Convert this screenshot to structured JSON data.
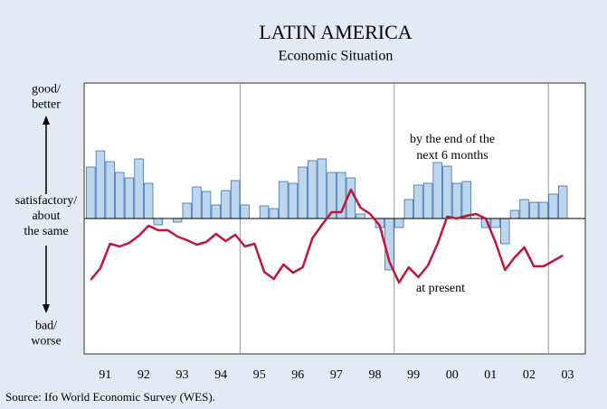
{
  "chart_data": {
    "type": "bar_line",
    "title": "LATIN AMERICA",
    "subtitle": "Economic Situation",
    "source": "Source: Ifo World Economic Survey (WES).",
    "year_labels": [
      "91",
      "92",
      "93",
      "94",
      "95",
      "96",
      "97",
      "98",
      "99",
      "00",
      "01",
      "02",
      "03"
    ],
    "y_labels": [
      [
        "good/",
        "better"
      ],
      [
        "satisfactory/",
        "about",
        "the same"
      ],
      [
        "bad/",
        "worse"
      ]
    ],
    "ylim": [
      -150,
      150
    ],
    "series": [
      {
        "name": "by the end of the next 6 months",
        "kind": "bar",
        "color": "#bcd6ee",
        "stroke": "#3d6fae",
        "values": [
          57,
          75,
          63,
          51,
          45,
          66,
          39,
          -7,
          0,
          -4,
          17,
          35,
          30,
          15,
          31,
          42,
          15,
          0,
          14,
          11,
          41,
          39,
          57,
          64,
          66,
          51,
          51,
          45,
          5,
          0,
          -10,
          -57,
          -10,
          21,
          37,
          39,
          62,
          58,
          39,
          41,
          0,
          -10,
          -10,
          -28,
          9,
          21,
          18,
          18,
          27,
          36
        ]
      },
      {
        "name": "at present",
        "kind": "line",
        "color": "#c0163b",
        "values": [
          -68,
          -55,
          -28,
          -31,
          -27,
          -19,
          -8,
          -13,
          -13,
          -20,
          -24,
          -29,
          -26,
          -17,
          -25,
          -18,
          -31,
          -28,
          -59,
          -67,
          -51,
          -60,
          -54,
          -22,
          -7,
          7,
          7,
          32,
          12,
          5,
          -8,
          -48,
          -71,
          -54,
          -65,
          -52,
          -28,
          2,
          0,
          3,
          5,
          0,
          -26,
          -57,
          -43,
          -32,
          -53,
          -53,
          -47,
          -41
        ]
      }
    ],
    "annotations": [
      [
        "by the end of the",
        "next 6 months"
      ],
      [
        "at present"
      ]
    ]
  }
}
